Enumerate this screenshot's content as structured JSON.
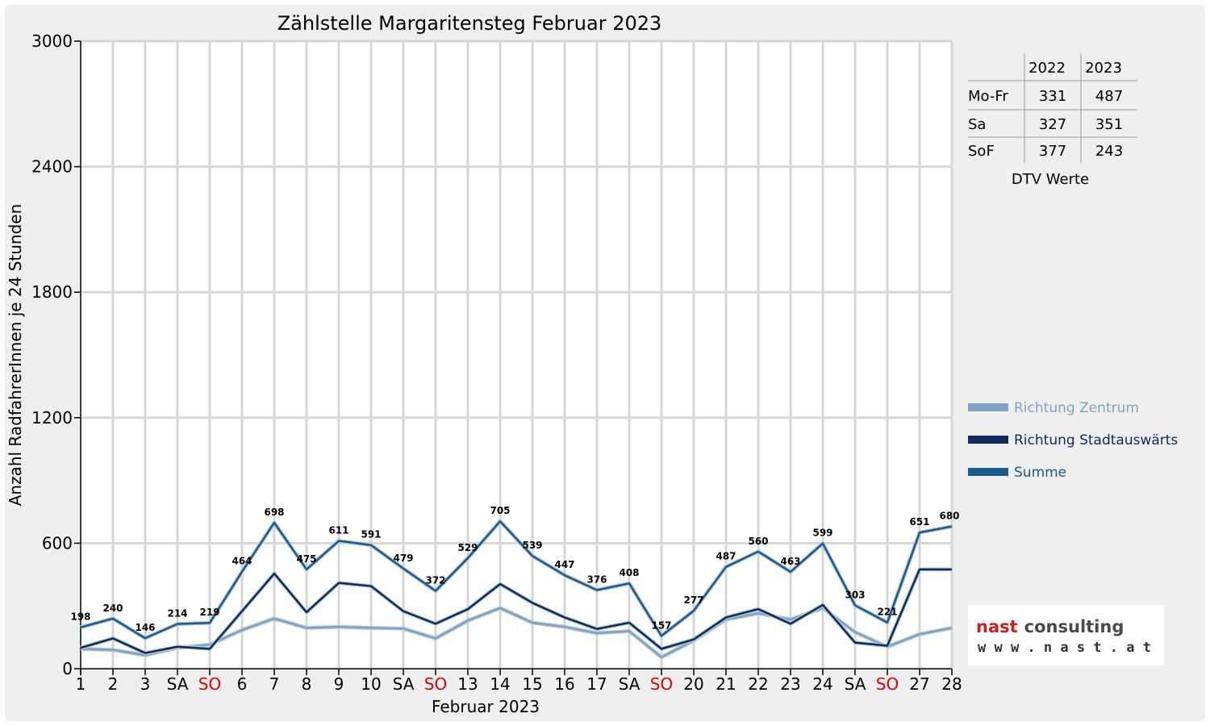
{
  "chart_data": {
    "type": "line",
    "title": "Zählstelle Margaritensteg Februar 2023",
    "xlabel": "Februar 2023",
    "ylabel": "Anzahl RadfahrerInnen je 24 Stunden",
    "ylim": [
      0,
      3000
    ],
    "yticks": [
      "0",
      "600",
      "1200",
      "1800",
      "2400",
      "3000"
    ],
    "categories": [
      "1",
      "2",
      "3",
      "SA",
      "SO",
      "6",
      "7",
      "8",
      "9",
      "10",
      "SA",
      "SO",
      "13",
      "14",
      "15",
      "16",
      "17",
      "SA",
      "SO",
      "20",
      "21",
      "22",
      "23",
      "24",
      "SA",
      "SO",
      "27",
      "28"
    ],
    "weekend_sundays": [
      4,
      11,
      18,
      25
    ],
    "grid": true,
    "legend_position": "right",
    "series": [
      {
        "name": "Richtung Zentrum",
        "color": "#7fa2c2",
        "values": [
          95,
          90,
          65,
          100,
          115,
          185,
          240,
          195,
          200,
          195,
          192,
          145,
          230,
          290,
          220,
          200,
          170,
          180,
          55,
          135,
          235,
          265,
          235,
          290,
          175,
          105,
          165,
          195
        ]
      },
      {
        "name": "Richtung Stadtauswärts",
        "color": "#0d2b57",
        "values": [
          100,
          145,
          75,
          105,
          95,
          275,
          455,
          270,
          410,
          395,
          275,
          215,
          285,
          405,
          315,
          245,
          190,
          220,
          95,
          140,
          245,
          285,
          215,
          305,
          125,
          110,
          475,
          475
        ]
      },
      {
        "name": "Summe",
        "color": "#1a5a8c",
        "values": [
          198,
          240,
          146,
          214,
          219,
          464,
          698,
          475,
          611,
          591,
          479,
          372,
          529,
          705,
          539,
          447,
          376,
          408,
          157,
          277,
          487,
          560,
          463,
          599,
          303,
          221,
          651,
          680
        ]
      }
    ],
    "data_labels": [
      "198",
      "240",
      "146",
      "214",
      "219",
      "464",
      "698",
      "475",
      "611",
      "591",
      "479",
      "372",
      "529",
      "705",
      "539",
      "447",
      "376",
      "408",
      "157",
      "277",
      "487",
      "560",
      "463",
      "599",
      "303",
      "221",
      "651",
      "680"
    ]
  },
  "dtv_table": {
    "caption": "DTV Werte",
    "columns": [
      "2022",
      "2023"
    ],
    "rows": [
      {
        "label": "Mo-Fr",
        "v2022": "331",
        "v2023": "487"
      },
      {
        "label": "Sa",
        "v2022": "327",
        "v2023": "351"
      },
      {
        "label": "SoF",
        "v2022": "377",
        "v2023": "243"
      }
    ]
  },
  "logo": {
    "brand1": "nast",
    "brand2": "consulting",
    "url": "w w w . n a s t . a t"
  }
}
